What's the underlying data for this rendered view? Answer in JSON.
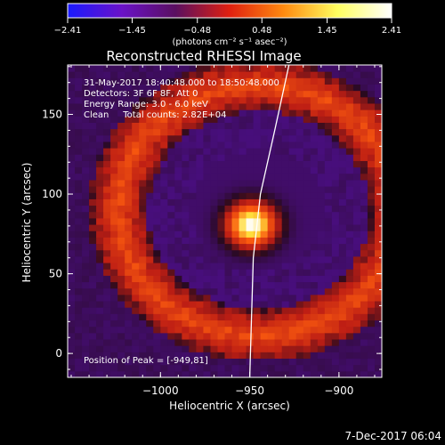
{
  "chart_data": {
    "type": "heatmap",
    "title": "Reconstructed RHESSI Image",
    "xlabel": "Heliocentric X (arcsec)",
    "ylabel": "Heliocentric Y (arcsec)",
    "xlim": [
      -1052,
      -876
    ],
    "ylim": [
      -15,
      181
    ],
    "x_ticks": [
      -1000,
      -950,
      -900
    ],
    "x_tick_labels": [
      "−1000",
      "−950",
      "−900"
    ],
    "y_ticks": [
      0,
      50,
      100,
      150
    ],
    "y_tick_labels": [
      "0",
      "50",
      "100",
      "150"
    ],
    "colorbar": {
      "min": -2.41,
      "max": 2.41,
      "ticks": [
        -2.41,
        -1.45,
        -0.48,
        0.48,
        1.45,
        2.41
      ],
      "tick_labels": [
        "−2.41",
        "−1.45",
        "−0.48",
        "0.48",
        "1.45",
        "2.41"
      ],
      "label": "(photons cm⁻² s⁻¹ asec⁻²)",
      "colors": [
        "#1a1aff",
        "#6a12c8",
        "#5a0f60",
        "#e02010",
        "#ff8a10",
        "#ffff60",
        "#ffffff"
      ]
    },
    "peak": {
      "x": -949,
      "y": 81,
      "value": 2.41
    },
    "ring": {
      "center_x": -945,
      "center_y": 90,
      "inner_radius": 38,
      "outer_radius": 62,
      "value": -0.3
    },
    "outer_ring": {
      "inner_radius": 62,
      "outer_radius": 95,
      "value": 0.9
    },
    "grid": false,
    "limb_line_points": [
      [
        -950,
        -15
      ],
      [
        -948,
        60
      ],
      [
        -944,
        100
      ],
      [
        -936,
        140
      ],
      [
        -928,
        181
      ]
    ]
  },
  "annotations": {
    "time_range": "31-May-2017 18:40:48.000 to 18:50:48.000",
    "detectors": "Detectors: 3F 6F 8F, Att 0",
    "energy": "Energy Range: 3.0 - 6.0 keV",
    "clean": "Clean     Total counts: 2.82E+04",
    "peak_text": "Position of Peak = [-949,81]"
  },
  "footer_date": "7-Dec-2017 06:04"
}
